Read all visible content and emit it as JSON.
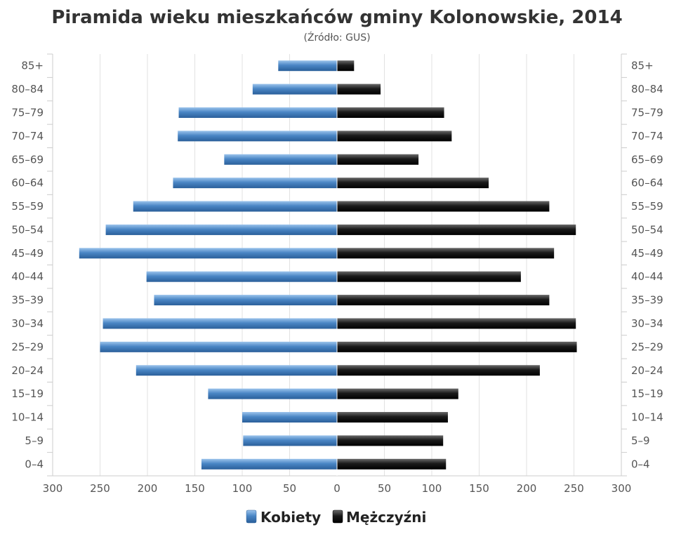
{
  "chart_data": {
    "type": "bar",
    "orientation": "horizontal-population-pyramid",
    "title": "Piramida wieku mieszkańców gminy Kolonowskie, 2014",
    "subtitle": "(Źródło: GUS)",
    "categories": [
      "85+",
      "80–84",
      "75–79",
      "70–74",
      "65–69",
      "60–64",
      "55–59",
      "50–54",
      "45–49",
      "40–44",
      "35–39",
      "30–34",
      "25–29",
      "20–24",
      "15–19",
      "10–14",
      "5–9",
      "0–4"
    ],
    "series": [
      {
        "name": "Kobiety",
        "side": "left",
        "color": "#4a86c5",
        "values": [
          62,
          89,
          167,
          168,
          119,
          173,
          215,
          244,
          272,
          201,
          193,
          247,
          250,
          212,
          136,
          100,
          99,
          143
        ]
      },
      {
        "name": "Mężczyźni",
        "side": "right",
        "color": "#1a1a1a",
        "values": [
          18,
          46,
          113,
          121,
          86,
          160,
          224,
          252,
          229,
          194,
          224,
          252,
          253,
          214,
          128,
          117,
          112,
          115
        ]
      }
    ],
    "xlim": [
      -300,
      300
    ],
    "x_ticks": [
      "300",
      "250",
      "200",
      "150",
      "100",
      "50",
      "0",
      "50",
      "100",
      "150",
      "200",
      "250",
      "300"
    ],
    "grid": true,
    "legend_position": "bottom-center"
  },
  "legend": {
    "women_label": "Kobiety",
    "men_label": "Mężczyźni"
  }
}
